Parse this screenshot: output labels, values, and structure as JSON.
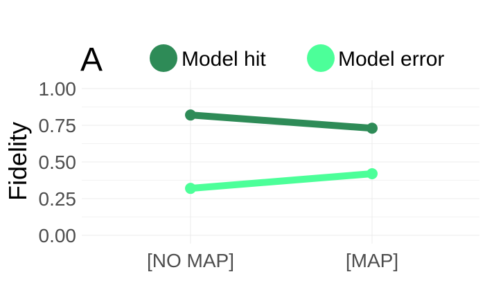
{
  "panel_label": "A",
  "chart_data": {
    "type": "line",
    "title": "",
    "xlabel": "",
    "ylabel": "Fidelity",
    "categories": [
      "[NO MAP]",
      "[MAP]"
    ],
    "ylim": [
      0,
      1
    ],
    "yticks": [
      "0.00",
      "0.25",
      "0.50",
      "0.75",
      "1.00"
    ],
    "ytick_values": [
      0,
      0.25,
      0.5,
      0.75,
      1.0
    ],
    "grid": true,
    "legend_position": "top",
    "series": [
      {
        "name": "Model hit",
        "color": "#2e8b57",
        "values": [
          0.82,
          0.73
        ]
      },
      {
        "name": "Model error",
        "color": "#4cff99",
        "values": [
          0.32,
          0.42
        ]
      }
    ]
  }
}
